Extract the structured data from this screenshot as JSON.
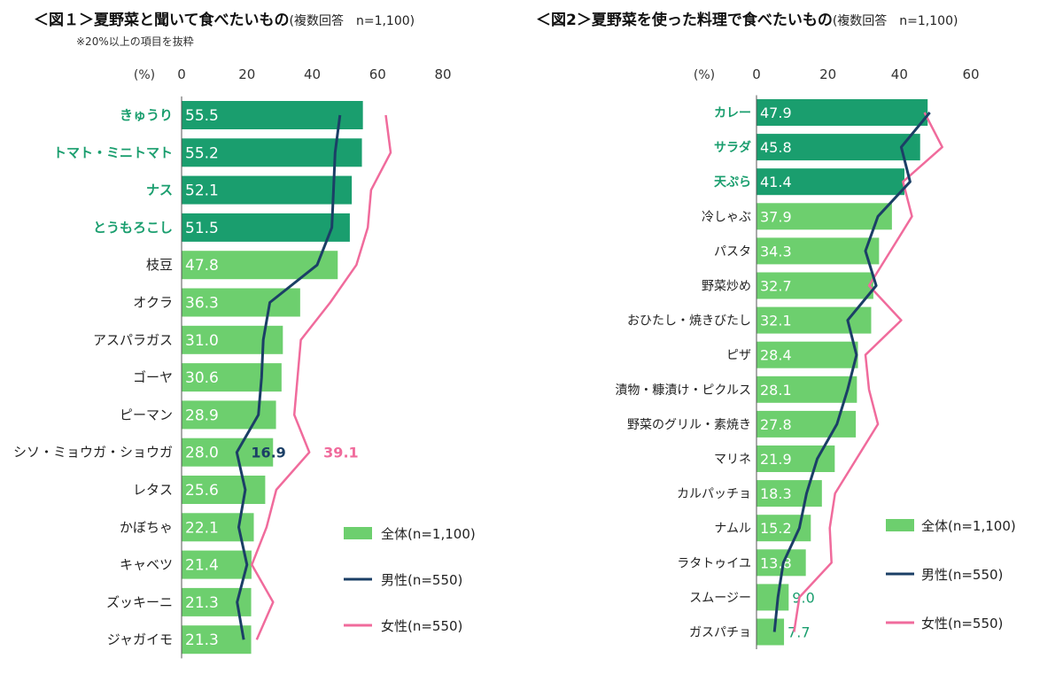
{
  "chart_data": [
    {
      "type": "bar",
      "title": "＜図１＞夏野菜と聞いて食べたいもの",
      "title_note": "(複数回答　n=1,100)",
      "subtitle": "※20%以上の項目を抜粋",
      "axis_unit": "(%)",
      "xlim": [
        0,
        80
      ],
      "ticks": [
        "0",
        "20",
        "40",
        "60",
        "80"
      ],
      "categories": [
        "きゅうり",
        "トマト・ミニトマト",
        "ナス",
        "とうもろこし",
        "枝豆",
        "オクラ",
        "アスパラガス",
        "ゴーヤ",
        "ピーマン",
        "シソ・ミョウガ・ショウガ",
        "レタス",
        "かぼちゃ",
        "キャベツ",
        "ズッキーニ",
        "ジャガイモ"
      ],
      "highlight_count": 4,
      "series": [
        {
          "name": "全体(n=1,100)",
          "kind": "bar",
          "values": [
            55.5,
            55.2,
            52.1,
            51.5,
            47.8,
            36.3,
            31.0,
            30.6,
            28.9,
            28.0,
            25.6,
            22.1,
            21.4,
            21.3,
            21.3
          ]
        },
        {
          "name": "男性(n=550)",
          "kind": "line",
          "values": [
            48.5,
            47.0,
            46.5,
            46.0,
            41.5,
            27.0,
            25.0,
            24.5,
            23.5,
            16.9,
            19.5,
            17.5,
            20.0,
            17.0,
            19.0
          ]
        },
        {
          "name": "女性(n=550)",
          "kind": "line",
          "values": [
            62.5,
            64.0,
            58.0,
            57.0,
            53.5,
            45.5,
            36.5,
            35.5,
            34.5,
            39.1,
            29.0,
            26.0,
            21.5,
            28.0,
            23.0
          ]
        }
      ],
      "annotations": [
        {
          "row": 9,
          "series": 1,
          "label": "16.9"
        },
        {
          "row": 9,
          "series": 2,
          "label": "39.1"
        }
      ],
      "grid": false,
      "legend": "bottom-right"
    },
    {
      "type": "bar",
      "title": "＜図2＞夏野菜を使った料理で食べたいもの",
      "title_note": "(複数回答　n=1,100)",
      "subtitle": "",
      "axis_unit": "(%)",
      "xlim": [
        0,
        60
      ],
      "ticks": [
        "0",
        "20",
        "40",
        "60"
      ],
      "categories": [
        "カレー",
        "サラダ",
        "天ぷら",
        "冷しゃぶ",
        "パスタ",
        "野菜炒め",
        "おひたし・焼きびたし",
        "ピザ",
        "漬物・糠漬け・ピクルス",
        "野菜のグリル・素焼き",
        "マリネ",
        "カルパッチョ",
        "ナムル",
        "ラタトゥイユ",
        "スムージー",
        "ガスパチョ"
      ],
      "highlight_count": 3,
      "series": [
        {
          "name": "全体(n=1,100)",
          "kind": "bar",
          "values": [
            47.9,
            45.8,
            41.4,
            37.9,
            34.3,
            32.7,
            32.1,
            28.4,
            28.1,
            27.8,
            21.9,
            18.3,
            15.2,
            13.8,
            9.0,
            7.7
          ]
        },
        {
          "name": "男性(n=550)",
          "kind": "line",
          "values": [
            48.5,
            40.5,
            43.0,
            34.0,
            30.5,
            33.5,
            25.5,
            28.0,
            25.5,
            22.5,
            17.0,
            14.0,
            12.0,
            7.5,
            6.0,
            5.0
          ]
        },
        {
          "name": "女性(n=550)",
          "kind": "line",
          "values": [
            47.0,
            52.0,
            41.0,
            43.5,
            37.5,
            31.5,
            40.5,
            30.5,
            31.5,
            34.0,
            28.0,
            22.0,
            20.5,
            21.0,
            12.0,
            10.5
          ]
        }
      ],
      "annotations": [],
      "grid": false,
      "legend": "bottom-right"
    }
  ],
  "colors": {
    "bar_highlight": "#1a9e6e",
    "bar_normal": "#6dcf6e",
    "label_highlight": "#1a9e6e",
    "male_line": "#1b3f66",
    "female_line": "#f06b9c",
    "bar_text": "#ffffff",
    "axis_text": "#333333"
  }
}
